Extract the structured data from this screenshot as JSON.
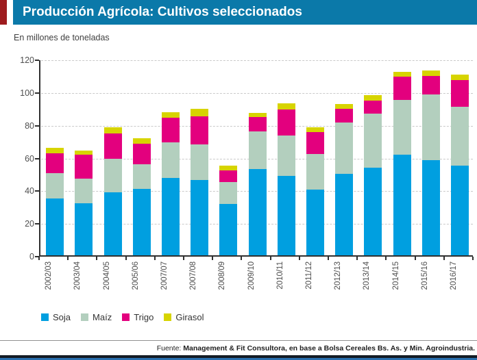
{
  "header": {
    "title": "Producción Agrícola: Cultivos seleccionados"
  },
  "subtitle": "En millones de toneladas",
  "colors": {
    "header_bg": "#0b79a9",
    "accent_red": "#9e1b1e",
    "soja": "#009fe0",
    "maiz": "#b3cfbe",
    "trigo": "#e3007e",
    "girasol": "#d7d400",
    "grid": "#c9c9c9",
    "axis": "#2f2f2f",
    "bottom_dark": "#141c24",
    "bottom_blue": "#2a6fae"
  },
  "chart_data": {
    "type": "bar",
    "stacked": true,
    "title": "Producción Agrícola: Cultivos seleccionados",
    "units_label": "En millones de toneladas",
    "categories": [
      "2002/03",
      "2003/04",
      "2004/05",
      "2005/06",
      "2007/07",
      "2007/08",
      "2008/09",
      "2009/10",
      "2010/11",
      "2011/12",
      "2012/13",
      "2013/14",
      "2014/15",
      "2015/16",
      "2016/17"
    ],
    "series": [
      {
        "name": "Soja",
        "color_key": "soja",
        "values": [
          34.8,
          31.7,
          38.4,
          40.4,
          47.2,
          45.8,
          31.3,
          52.8,
          48.5,
          40.0,
          49.7,
          53.5,
          61.4,
          58.3,
          54.9
        ]
      },
      {
        "name": "Maíz",
        "color_key": "maiz",
        "values": [
          15.5,
          15.0,
          20.5,
          15.2,
          21.8,
          22.1,
          13.5,
          22.8,
          24.6,
          21.8,
          31.5,
          33.0,
          33.5,
          40.0,
          35.7
        ]
      },
      {
        "name": "Trigo",
        "color_key": "trigo",
        "values": [
          12.0,
          14.8,
          15.6,
          12.4,
          14.9,
          16.9,
          7.2,
          8.9,
          15.9,
          13.4,
          8.2,
          8.0,
          14.3,
          11.4,
          16.6
        ]
      },
      {
        "name": "Girasol",
        "color_key": "girasol",
        "values": [
          3.5,
          2.6,
          3.7,
          3.5,
          3.7,
          4.6,
          2.9,
          2.4,
          3.7,
          3.0,
          3.0,
          3.2,
          2.9,
          3.1,
          3.4
        ]
      }
    ],
    "totals": [
      65.8,
      64.1,
      78.2,
      71.5,
      87.6,
      89.4,
      54.9,
      86.9,
      92.7,
      78.2,
      92.4,
      97.7,
      112.1,
      112.8,
      110.6
    ],
    "ylim": [
      0,
      120
    ],
    "yticks": [
      0,
      20,
      40,
      60,
      80,
      100,
      120
    ],
    "grid": "horizontal-dashed",
    "legend_position": "bottom-left",
    "x_label_rotation": 90
  },
  "footer": {
    "prefix": "Fuente: ",
    "source": "Management & Fit Consultora, en base a Bolsa Cereales Bs. As. y Min. Agroindustria."
  }
}
